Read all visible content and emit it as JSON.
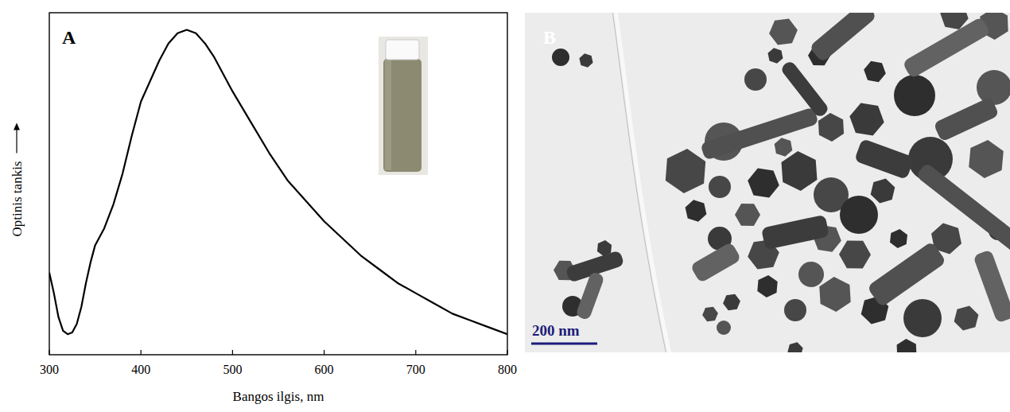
{
  "chart_data": [
    {
      "type": "line",
      "panel": "A",
      "x_label": "Bangos ilgis, nm",
      "y_label": "Optinis tankis",
      "x": [
        300,
        305,
        310,
        315,
        320,
        325,
        330,
        335,
        340,
        345,
        350,
        355,
        360,
        370,
        380,
        390,
        400,
        410,
        420,
        430,
        440,
        450,
        460,
        470,
        480,
        490,
        500,
        520,
        540,
        560,
        580,
        600,
        620,
        640,
        660,
        680,
        700,
        720,
        740,
        760,
        780,
        800
      ],
      "values": [
        0.24,
        0.18,
        0.11,
        0.07,
        0.06,
        0.065,
        0.09,
        0.14,
        0.21,
        0.27,
        0.32,
        0.345,
        0.37,
        0.44,
        0.53,
        0.64,
        0.74,
        0.8,
        0.86,
        0.91,
        0.94,
        0.95,
        0.94,
        0.91,
        0.87,
        0.82,
        0.77,
        0.68,
        0.59,
        0.51,
        0.45,
        0.39,
        0.34,
        0.29,
        0.25,
        0.21,
        0.18,
        0.15,
        0.12,
        0.1,
        0.08,
        0.06
      ],
      "color": "#000000",
      "xlim": [
        300,
        800
      ],
      "xticks": [
        300,
        400,
        500,
        600,
        700,
        800
      ],
      "ylim": [
        0,
        1
      ],
      "yticks": [],
      "tick_labels": "x",
      "grid": false
    },
    {
      "type": "image",
      "panel": "B",
      "annotations": [
        "200 nm"
      ]
    }
  ]
}
